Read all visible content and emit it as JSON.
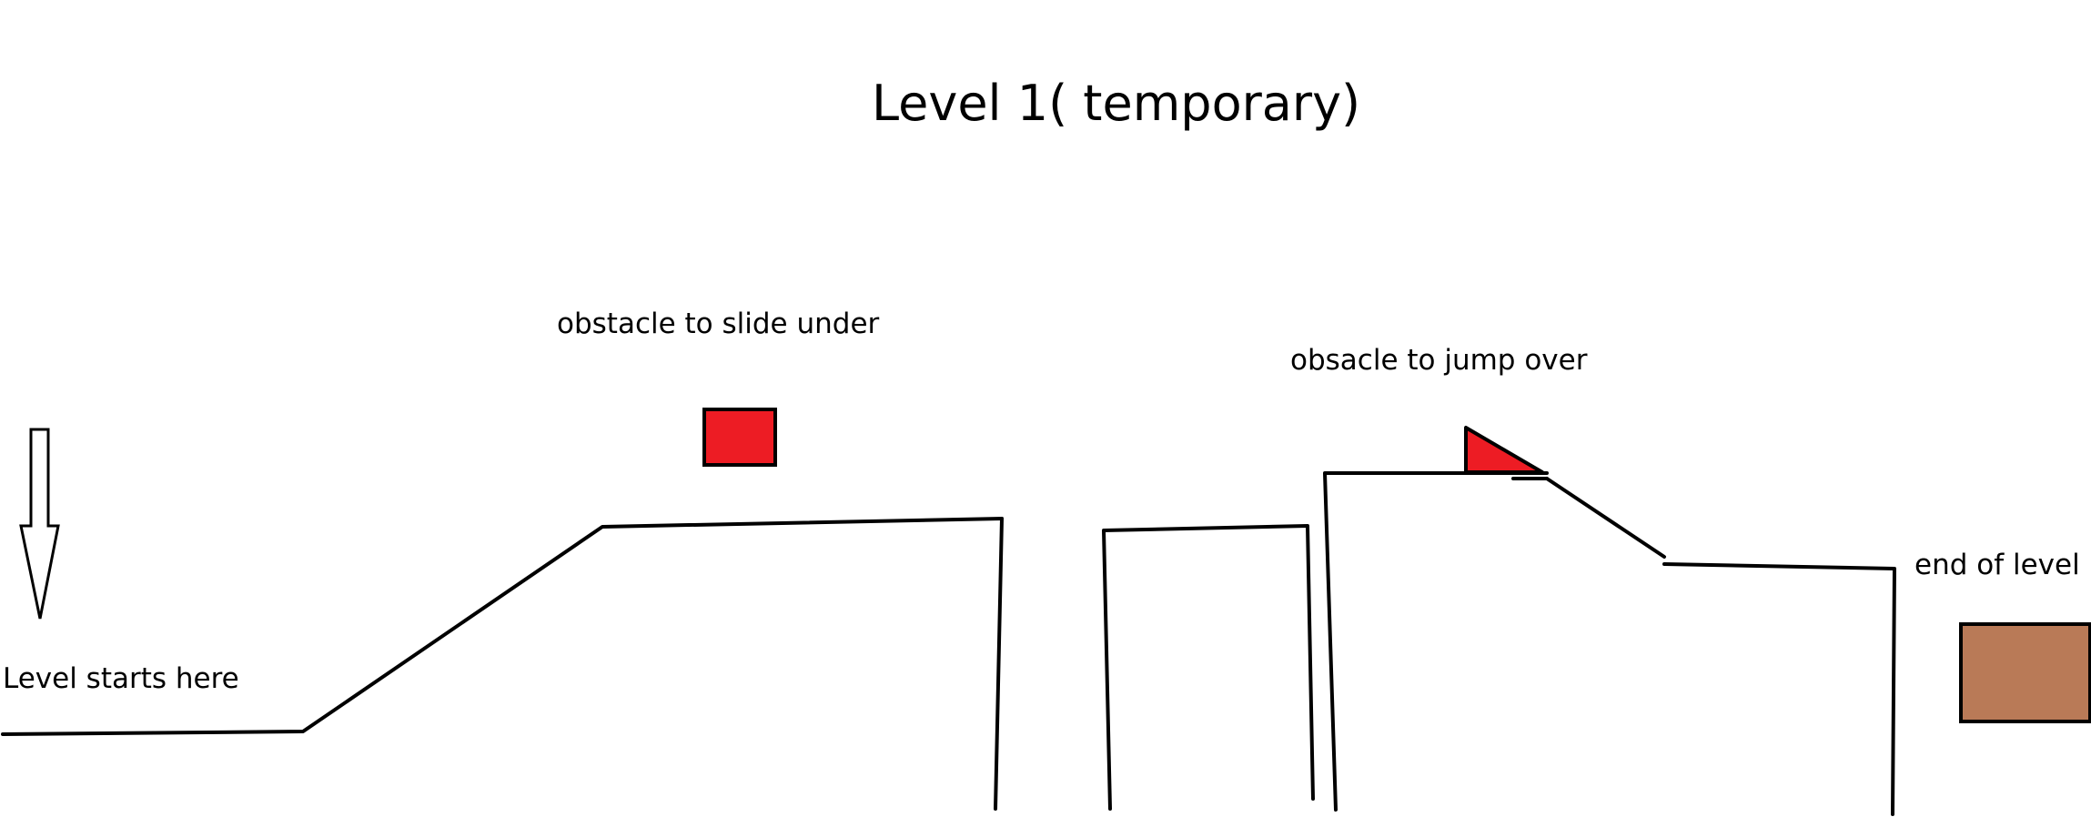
{
  "title": "Level 1( temporary)",
  "labels": {
    "slide_obstacle": "obstacle to slide under",
    "jump_obstacle": "obsacle to jump over",
    "level_start": "Level starts here",
    "level_end": "end of level"
  },
  "colors": {
    "line": "#000000",
    "obstacle": "#ed1c24",
    "end_block": "#b97a57",
    "background": "#ffffff"
  },
  "icons": {
    "start_marker": "down-arrow-icon"
  }
}
